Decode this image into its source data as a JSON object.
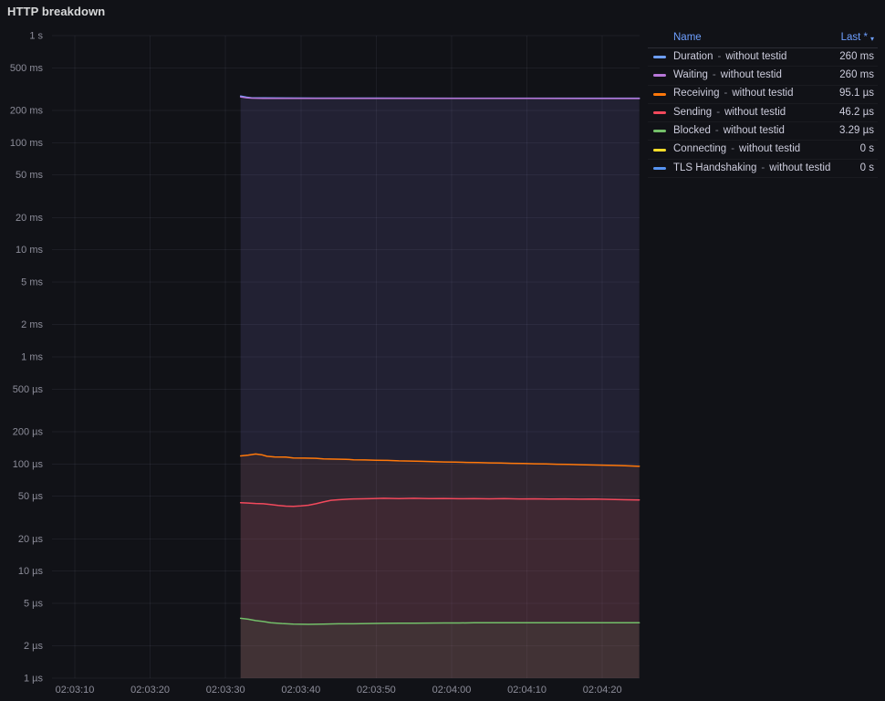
{
  "panel": {
    "title": "HTTP breakdown"
  },
  "legend": {
    "header": {
      "name": "Name",
      "last": "Last *",
      "sort_icon": "▾"
    }
  },
  "chart_data": {
    "type": "line",
    "title": "HTTP breakdown",
    "y_scale": "log10",
    "y_unit": "µs",
    "y_min": 1,
    "y_max": 1000000,
    "grid": true,
    "legend_position": "right-table",
    "y_ticks": [
      {
        "label": "1 s",
        "value": 1000000
      },
      {
        "label": "500 ms",
        "value": 500000
      },
      {
        "label": "200 ms",
        "value": 200000
      },
      {
        "label": "100 ms",
        "value": 100000
      },
      {
        "label": "50 ms",
        "value": 50000
      },
      {
        "label": "20 ms",
        "value": 20000
      },
      {
        "label": "10 ms",
        "value": 10000
      },
      {
        "label": "5 ms",
        "value": 5000
      },
      {
        "label": "2 ms",
        "value": 2000
      },
      {
        "label": "1 ms",
        "value": 1000
      },
      {
        "label": "500 µs",
        "value": 500
      },
      {
        "label": "200 µs",
        "value": 200
      },
      {
        "label": "100 µs",
        "value": 100
      },
      {
        "label": "50 µs",
        "value": 50
      },
      {
        "label": "20 µs",
        "value": 20
      },
      {
        "label": "10 µs",
        "value": 10
      },
      {
        "label": "5 µs",
        "value": 5
      },
      {
        "label": "2 µs",
        "value": 2
      },
      {
        "label": "1 µs",
        "value": 1
      }
    ],
    "x_ticks": [
      {
        "label": "02:03:10",
        "t": 0
      },
      {
        "label": "02:03:20",
        "t": 10
      },
      {
        "label": "02:03:30",
        "t": 20
      },
      {
        "label": "02:03:40",
        "t": 30
      },
      {
        "label": "02:03:50",
        "t": 40
      },
      {
        "label": "02:04:00",
        "t": 50
      },
      {
        "label": "02:04:10",
        "t": 60
      },
      {
        "label": "02:04:20",
        "t": 70
      }
    ],
    "series": [
      {
        "name": "Duration",
        "separator": "-",
        "qualifier": "without testid",
        "color": "#6E9FFF",
        "last": "260 ms",
        "points": [
          [
            22,
            272000
          ],
          [
            22.8,
            266000
          ],
          [
            23.5,
            262500
          ],
          [
            25,
            261500
          ],
          [
            28,
            261000
          ],
          [
            32,
            260800
          ],
          [
            40,
            260600
          ],
          [
            50,
            260400
          ],
          [
            60,
            260300
          ],
          [
            70,
            260200
          ],
          [
            74.9,
            260100
          ]
        ]
      },
      {
        "name": "Waiting",
        "separator": "-",
        "qualifier": "without testid",
        "color": "#B877D9",
        "last": "260 ms",
        "points": [
          [
            22,
            268000
          ],
          [
            22.8,
            263000
          ],
          [
            23.5,
            260500
          ],
          [
            25,
            259800
          ],
          [
            28,
            259400
          ],
          [
            32,
            259300
          ],
          [
            40,
            259200
          ],
          [
            50,
            259100
          ],
          [
            60,
            259000
          ],
          [
            70,
            258900
          ],
          [
            74.9,
            258900
          ]
        ]
      },
      {
        "name": "Receiving",
        "separator": "-",
        "qualifier": "without testid",
        "color": "#FF780A",
        "last": "95.1 µs",
        "points": [
          [
            22,
            119
          ],
          [
            23,
            121
          ],
          [
            24,
            124
          ],
          [
            24.8,
            122
          ],
          [
            25.5,
            118
          ],
          [
            26.5,
            116.5
          ],
          [
            28,
            116
          ],
          [
            29,
            114
          ],
          [
            30.5,
            113.5
          ],
          [
            32,
            113
          ],
          [
            33,
            111.5
          ],
          [
            34.5,
            111
          ],
          [
            36,
            110.5
          ],
          [
            37,
            109.5
          ],
          [
            38.5,
            109
          ],
          [
            40,
            108.5
          ],
          [
            41.5,
            108
          ],
          [
            43,
            107
          ],
          [
            44.5,
            106.5
          ],
          [
            46,
            106
          ],
          [
            47.5,
            105
          ],
          [
            49,
            104.5
          ],
          [
            50.5,
            104
          ],
          [
            52,
            103.5
          ],
          [
            53.5,
            103
          ],
          [
            55,
            102.5
          ],
          [
            56.5,
            102
          ],
          [
            58,
            101.5
          ],
          [
            59.5,
            101
          ],
          [
            61,
            100.5
          ],
          [
            62.5,
            100
          ],
          [
            64,
            99.5
          ],
          [
            65.5,
            99
          ],
          [
            67,
            98.5
          ],
          [
            68.5,
            98
          ],
          [
            70,
            97.5
          ],
          [
            71.5,
            97
          ],
          [
            73,
            96.3
          ],
          [
            74.9,
            95.1
          ]
        ]
      },
      {
        "name": "Sending",
        "separator": "-",
        "qualifier": "without testid",
        "color": "#F2495C",
        "last": "46.2 µs",
        "points": [
          [
            22,
            43.5
          ],
          [
            23,
            43.2
          ],
          [
            24,
            42.8
          ],
          [
            25,
            42.5
          ],
          [
            26,
            41.8
          ],
          [
            27,
            41
          ],
          [
            28,
            40.4
          ],
          [
            29,
            40.2
          ],
          [
            30,
            40.6
          ],
          [
            31,
            41.2
          ],
          [
            32,
            42.5
          ],
          [
            33,
            44.2
          ],
          [
            34,
            45.8
          ],
          [
            35,
            46.4
          ],
          [
            36,
            46.8
          ],
          [
            37,
            47.2
          ],
          [
            38,
            47.3
          ],
          [
            39.5,
            47.6
          ],
          [
            41,
            47.8
          ],
          [
            43,
            47.6
          ],
          [
            45,
            47.8
          ],
          [
            47,
            47.5
          ],
          [
            49,
            47.7
          ],
          [
            51,
            47.4
          ],
          [
            53,
            47.6
          ],
          [
            55,
            47.3
          ],
          [
            57,
            47.5
          ],
          [
            59,
            47.2
          ],
          [
            61,
            47.3
          ],
          [
            63,
            47
          ],
          [
            65,
            47.2
          ],
          [
            67,
            46.9
          ],
          [
            69,
            47
          ],
          [
            71,
            46.7
          ],
          [
            73,
            46.4
          ],
          [
            74.9,
            46.2
          ]
        ]
      },
      {
        "name": "Blocked",
        "separator": "-",
        "qualifier": "without testid",
        "color": "#73BF69",
        "last": "3.29 µs",
        "points": [
          [
            22,
            3.62
          ],
          [
            23,
            3.55
          ],
          [
            24,
            3.45
          ],
          [
            25,
            3.38
          ],
          [
            26,
            3.3
          ],
          [
            27.5,
            3.24
          ],
          [
            29,
            3.2
          ],
          [
            31,
            3.18
          ],
          [
            33,
            3.2
          ],
          [
            35,
            3.22
          ],
          [
            37,
            3.22
          ],
          [
            39,
            3.24
          ],
          [
            41,
            3.25
          ],
          [
            43,
            3.26
          ],
          [
            45,
            3.26
          ],
          [
            47,
            3.27
          ],
          [
            49,
            3.28
          ],
          [
            51,
            3.28
          ],
          [
            53,
            3.29
          ],
          [
            55,
            3.29
          ],
          [
            57,
            3.3
          ],
          [
            59,
            3.3
          ],
          [
            61,
            3.3
          ],
          [
            63,
            3.3
          ],
          [
            65,
            3.3
          ],
          [
            67,
            3.3
          ],
          [
            69,
            3.3
          ],
          [
            71,
            3.3
          ],
          [
            73,
            3.3
          ],
          [
            74.9,
            3.29
          ]
        ]
      },
      {
        "name": "Connecting",
        "separator": "-",
        "qualifier": "without testid",
        "color": "#FADE2A",
        "last": "0 s",
        "points": []
      },
      {
        "name": "TLS Handshaking",
        "separator": "-",
        "qualifier": "without testid",
        "color": "#5794F2",
        "last": "0 s",
        "points": []
      }
    ]
  }
}
